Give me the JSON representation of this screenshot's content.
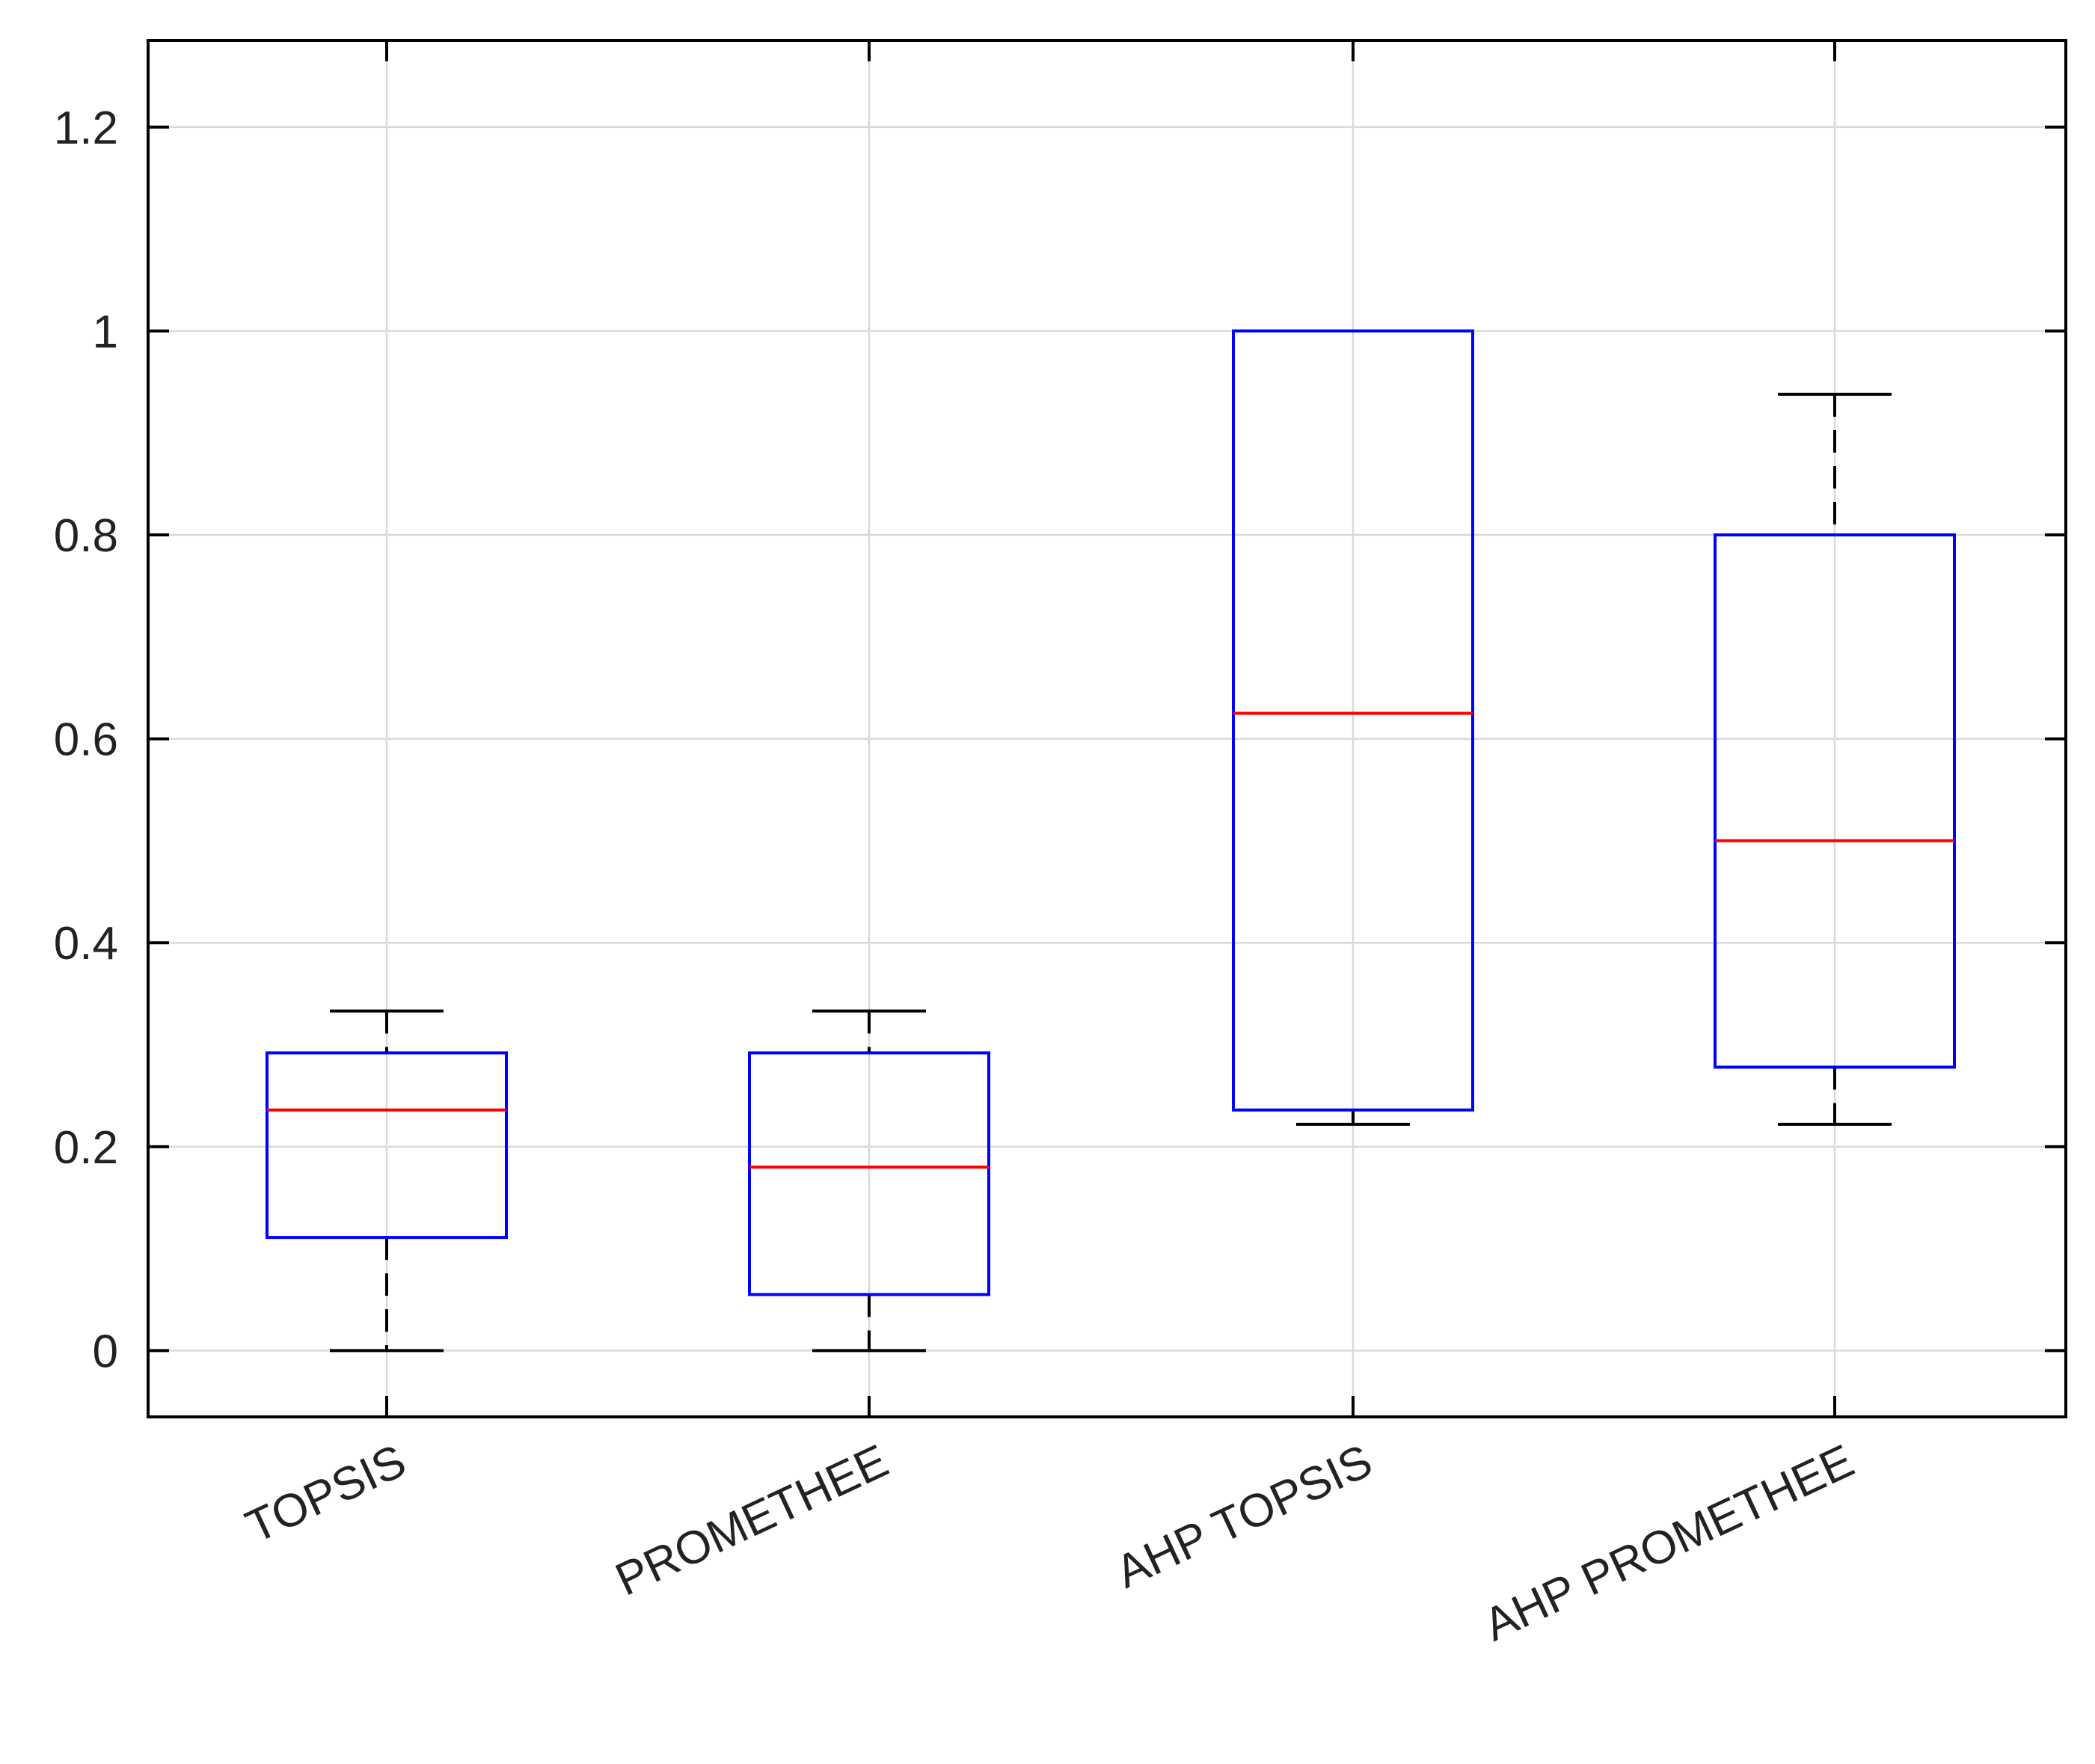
{
  "chart_data": {
    "type": "boxplot",
    "title": "",
    "xlabel": "",
    "ylabel": "",
    "ylim": [
      -0.065,
      1.285
    ],
    "yticks": [
      0,
      0.2,
      0.4,
      0.6,
      0.8,
      1,
      1.2
    ],
    "ytick_labels": [
      "0",
      "0.2",
      "0.4",
      "0.6",
      "0.8",
      "1",
      "1.2"
    ],
    "grid": true,
    "categories": [
      "TOPSIS",
      "PROMETHEE",
      "AHP TOPSIS",
      "AHP PROMETHEE"
    ],
    "boxes": [
      {
        "name": "TOPSIS",
        "whisker_low": 0.0,
        "q1": 0.111,
        "median": 0.236,
        "q3": 0.292,
        "whisker_high": 0.333
      },
      {
        "name": "PROMETHEE",
        "whisker_low": 0.0,
        "q1": 0.055,
        "median": 0.18,
        "q3": 0.292,
        "whisker_high": 0.333
      },
      {
        "name": "AHP TOPSIS",
        "whisker_low": 0.222,
        "q1": 0.236,
        "median": 0.625,
        "q3": 1.0,
        "whisker_high": 1.0
      },
      {
        "name": "AHP PROMETHEE",
        "whisker_low": 0.222,
        "q1": 0.278,
        "median": 0.5,
        "q3": 0.8,
        "whisker_high": 0.938
      }
    ],
    "colors": {
      "box": "#0000ff",
      "median": "#ff0000",
      "whisker": "#000000",
      "grid": "#d9d9d9",
      "axis": "#000000"
    }
  }
}
